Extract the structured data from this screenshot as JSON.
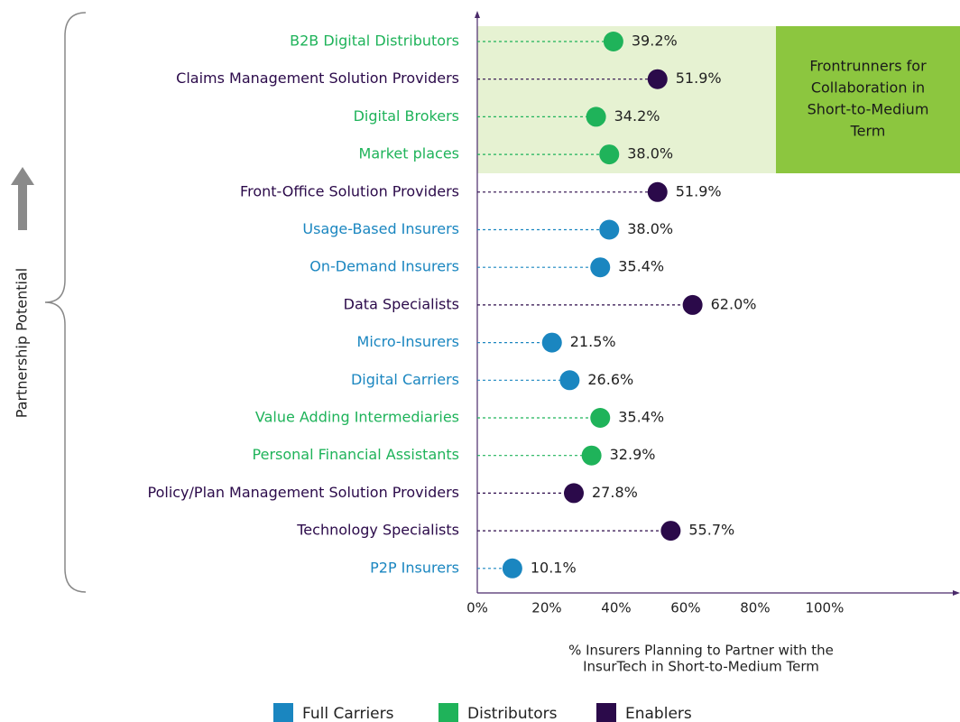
{
  "chart_data": {
    "type": "dot",
    "categories": [
      "B2B Digital Distributors",
      "Claims Management Solution Providers",
      "Digital Brokers",
      "Market places",
      "Front-Office Solution Providers",
      "Usage-Based Insurers",
      "On-Demand Insurers",
      "Data Specialists",
      "Micro-Insurers",
      "Digital Carriers",
      "Value Adding Intermediaries",
      "Personal Financial Assistants",
      "Policy/Plan Management Solution Providers",
      "Technology Specialists",
      "P2P Insurers"
    ],
    "series": [
      {
        "name": "Full Carriers",
        "color": "#1a86c0",
        "values": [
          null,
          null,
          null,
          null,
          null,
          38.0,
          35.4,
          null,
          21.5,
          26.6,
          null,
          null,
          null,
          null,
          10.1
        ],
        "value_labels": [
          null,
          null,
          null,
          null,
          null,
          "38.0%",
          "35.4%",
          null,
          "21.5%",
          "26.6%",
          null,
          null,
          null,
          null,
          "10.1%"
        ]
      },
      {
        "name": "Distributors",
        "color": "#1fb35a",
        "values": [
          39.2,
          null,
          34.2,
          38.0,
          null,
          null,
          null,
          null,
          null,
          null,
          35.4,
          32.9,
          null,
          null,
          null
        ],
        "value_labels": [
          "39.2%",
          null,
          "34.2%",
          "38.0%",
          null,
          null,
          null,
          null,
          null,
          null,
          "35.4%",
          "32.9%",
          null,
          null,
          null
        ]
      },
      {
        "name": "Enablers",
        "color": "#2b0a4a",
        "values": [
          null,
          51.9,
          null,
          null,
          51.9,
          null,
          null,
          62.0,
          null,
          null,
          null,
          null,
          27.8,
          55.7,
          null
        ],
        "value_labels": [
          null,
          "51.9%",
          null,
          null,
          "51.9%",
          null,
          null,
          "62.0%",
          null,
          null,
          null,
          null,
          "27.8%",
          "55.7%",
          null
        ]
      }
    ],
    "xlim": [
      0,
      139
    ],
    "xticks": [
      {
        "value": 0,
        "label": "0%"
      },
      {
        "value": 20,
        "label": "20%"
      },
      {
        "value": 40,
        "label": "40%"
      },
      {
        "value": 60,
        "label": "60%"
      },
      {
        "value": 80,
        "label": "80%"
      },
      {
        "value": 100,
        "label": "100%"
      }
    ],
    "x_label": [
      "% Insurers Planning to Partner with the",
      "InsurTech in Short-to-Medium Term"
    ],
    "y_label": "Partnership Potential",
    "annotation": [
      "Frontrunners for",
      "Collaboration in",
      "Short-to-Medium",
      "Term"
    ]
  }
}
